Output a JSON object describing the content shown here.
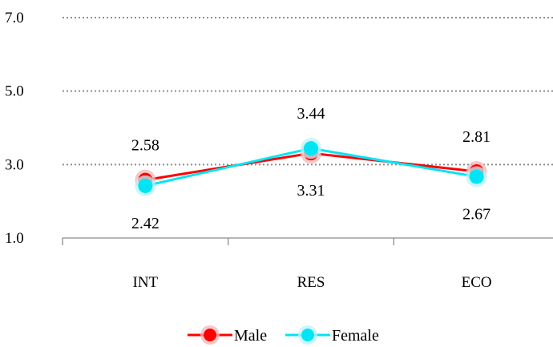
{
  "chart_data": {
    "type": "line",
    "categories": [
      "INT",
      "RES",
      "ECO"
    ],
    "ylim": [
      1.0,
      7.0
    ],
    "yticks": [
      "1.0",
      "3.0",
      "5.0",
      "7.0"
    ],
    "ytick_values": [
      1.0,
      3.0,
      5.0,
      7.0
    ],
    "grid": true,
    "legend_position": "bottom-center",
    "series": [
      {
        "name": "Male",
        "values": [
          2.58,
          3.31,
          2.81
        ],
        "labels": [
          "2.58",
          "3.31",
          "2.81"
        ],
        "color": "#ff0000"
      },
      {
        "name": "Female",
        "values": [
          2.42,
          3.44,
          2.67
        ],
        "labels": [
          "2.42",
          "3.44",
          "2.67"
        ],
        "color": "#00e5f5"
      }
    ]
  }
}
